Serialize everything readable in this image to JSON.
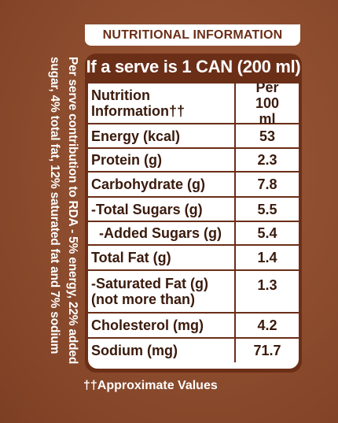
{
  "header": {
    "title": "NUTRITIONAL INFORMATION",
    "serving": "If a serve is 1 CAN (200 ml)"
  },
  "table": {
    "headers": [
      "Nutrition Information††",
      "Per 100 ml"
    ],
    "rows": [
      [
        "Energy (kcal)",
        53
      ],
      [
        "Protein (g)",
        2.3
      ],
      [
        "Carbohydrate (g)",
        7.8
      ],
      [
        "-Total Sugars (g)",
        5.5
      ],
      [
        "-Added Sugars (g)",
        5.4
      ],
      [
        "Total Fat (g)",
        1.4
      ],
      [
        "-Saturated Fat (g) (not more than)",
        1.3
      ],
      [
        "Cholesterol (mg)",
        4.2
      ],
      [
        "Sodium (mg)",
        71.7
      ]
    ]
  },
  "side_note": "Per serve contribution to RDA - 5% energy, 22% added sugar, 4% total fat, 12% saturated fat and 7% sodium",
  "footnote": "††Approximate Values"
}
